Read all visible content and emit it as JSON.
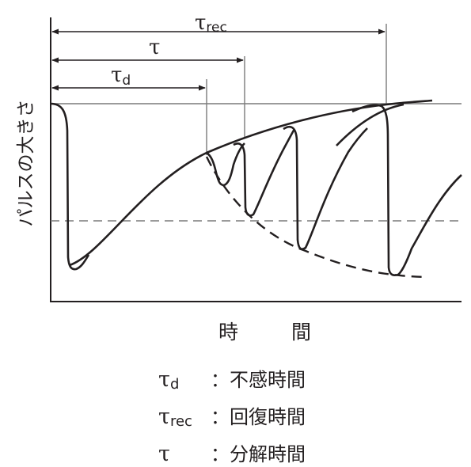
{
  "labels": {
    "y_axis": "パルスの大きさ",
    "x_axis_1": "時",
    "x_axis_2": "間",
    "tau_symbol": "τ",
    "sub_d": "d",
    "sub_rec": "rec"
  },
  "legend": [
    {
      "symbol": "τ",
      "sub": "d",
      "text": "：不感時間"
    },
    {
      "symbol": "τ",
      "sub": "rec",
      "text": "：回復時間"
    },
    {
      "symbol": "τ",
      "sub": "",
      "text": "：分解時間"
    }
  ],
  "colors": {
    "ink": "#231f20",
    "reference_line": "#7a7a7a"
  }
}
